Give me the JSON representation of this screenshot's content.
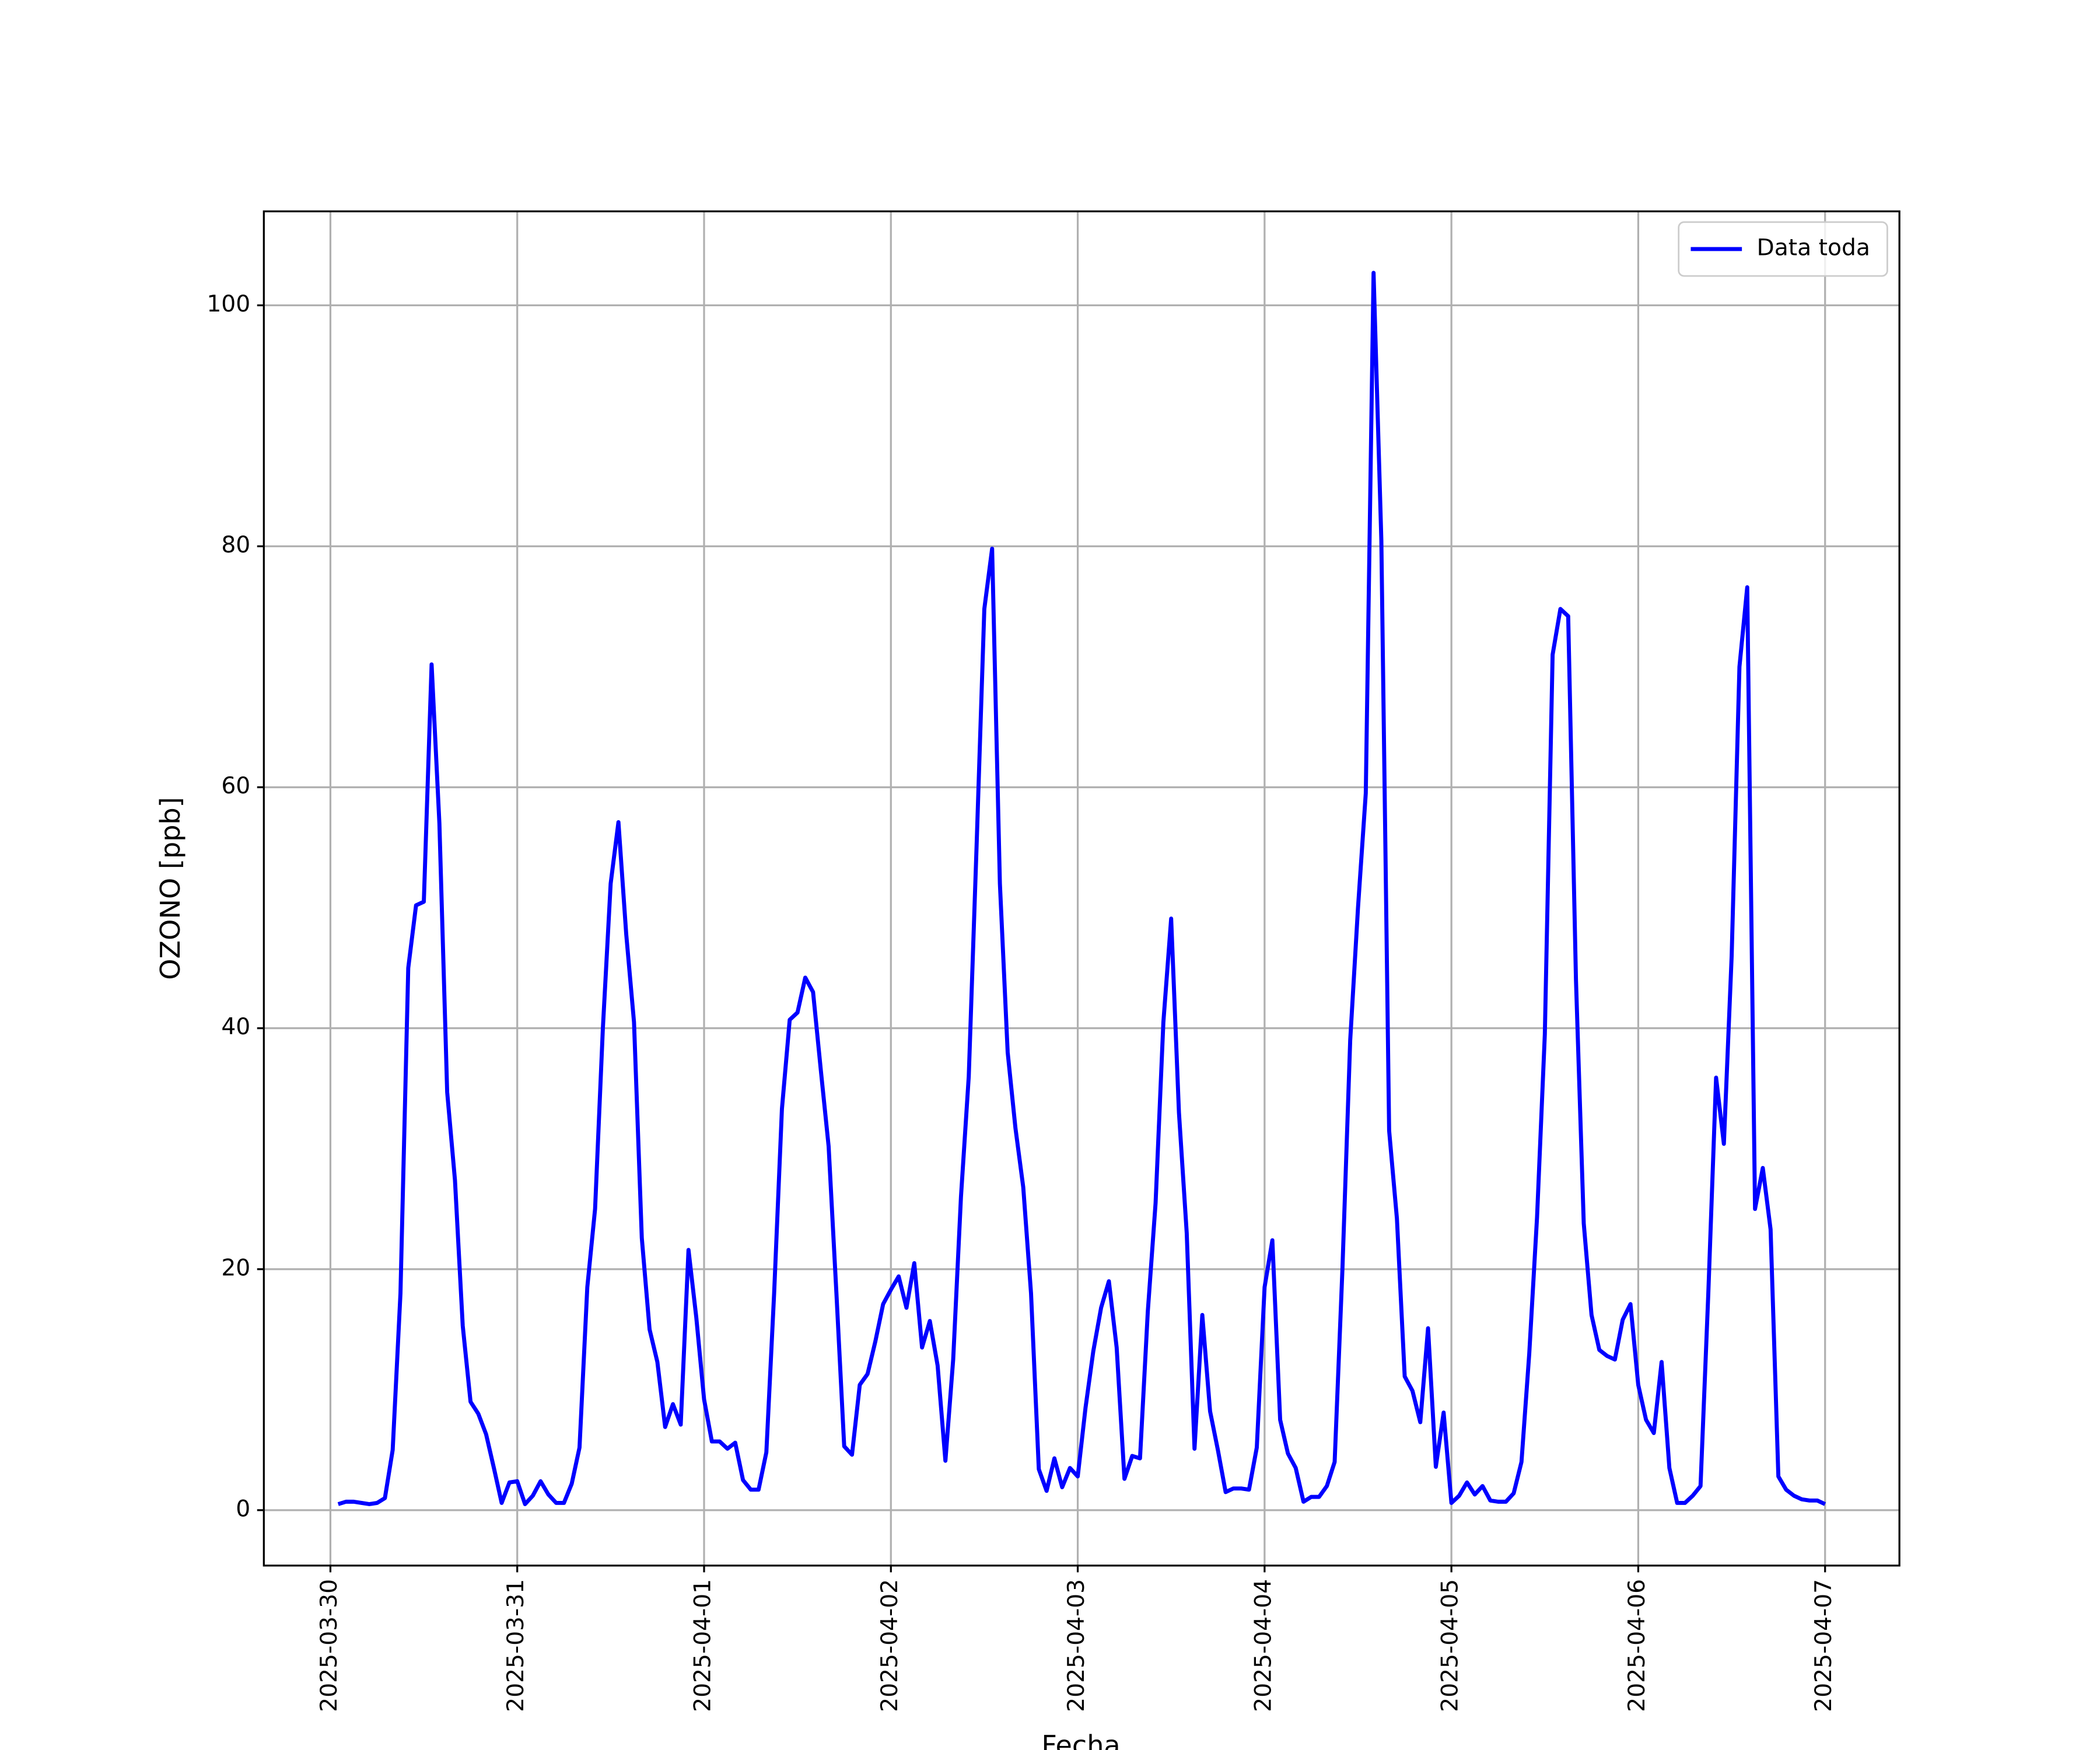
{
  "chart_data": {
    "type": "line",
    "xlabel": "Fecha",
    "ylabel": "OZONO [ppb]",
    "x": [
      "2025-03-30T01:00",
      "2025-03-30T02:00",
      "2025-03-30T03:00",
      "2025-03-30T04:00",
      "2025-03-30T05:00",
      "2025-03-30T06:00",
      "2025-03-30T07:00",
      "2025-03-30T08:00",
      "2025-03-30T09:00",
      "2025-03-30T10:00",
      "2025-03-30T11:00",
      "2025-03-30T12:00",
      "2025-03-30T13:00",
      "2025-03-30T14:00",
      "2025-03-30T15:00",
      "2025-03-30T16:00",
      "2025-03-30T17:00",
      "2025-03-30T18:00",
      "2025-03-30T19:00",
      "2025-03-30T20:00",
      "2025-03-30T21:00",
      "2025-03-30T22:00",
      "2025-03-30T23:00",
      "2025-03-31T00:00",
      "2025-03-31T01:00",
      "2025-03-31T02:00",
      "2025-03-31T03:00",
      "2025-03-31T04:00",
      "2025-03-31T05:00",
      "2025-03-31T06:00",
      "2025-03-31T07:00",
      "2025-03-31T08:00",
      "2025-03-31T09:00",
      "2025-03-31T10:00",
      "2025-03-31T11:00",
      "2025-03-31T12:00",
      "2025-03-31T13:00",
      "2025-03-31T14:00",
      "2025-03-31T15:00",
      "2025-03-31T16:00",
      "2025-03-31T17:00",
      "2025-03-31T18:00",
      "2025-03-31T19:00",
      "2025-03-31T20:00",
      "2025-03-31T21:00",
      "2025-03-31T22:00",
      "2025-03-31T23:00",
      "2025-04-01T00:00",
      "2025-04-01T01:00",
      "2025-04-01T02:00",
      "2025-04-01T03:00",
      "2025-04-01T04:00",
      "2025-04-01T05:00",
      "2025-04-01T06:00",
      "2025-04-01T07:00",
      "2025-04-01T08:00",
      "2025-04-01T09:00",
      "2025-04-01T10:00",
      "2025-04-01T11:00",
      "2025-04-01T12:00",
      "2025-04-01T13:00",
      "2025-04-01T14:00",
      "2025-04-01T15:00",
      "2025-04-01T16:00",
      "2025-04-01T17:00",
      "2025-04-01T18:00",
      "2025-04-01T19:00",
      "2025-04-01T20:00",
      "2025-04-01T21:00",
      "2025-04-01T22:00",
      "2025-04-01T23:00",
      "2025-04-02T00:00",
      "2025-04-02T01:00",
      "2025-04-02T02:00",
      "2025-04-02T03:00",
      "2025-04-02T04:00",
      "2025-04-02T05:00",
      "2025-04-02T06:00",
      "2025-04-02T07:00",
      "2025-04-02T08:00",
      "2025-04-02T09:00",
      "2025-04-02T10:00",
      "2025-04-02T11:00",
      "2025-04-02T12:00",
      "2025-04-02T13:00",
      "2025-04-02T14:00",
      "2025-04-02T15:00",
      "2025-04-02T16:00",
      "2025-04-02T17:00",
      "2025-04-02T18:00",
      "2025-04-02T19:00",
      "2025-04-02T20:00",
      "2025-04-02T21:00",
      "2025-04-02T22:00",
      "2025-04-02T23:00",
      "2025-04-03T00:00",
      "2025-04-03T01:00",
      "2025-04-03T02:00",
      "2025-04-03T03:00",
      "2025-04-03T04:00",
      "2025-04-03T05:00",
      "2025-04-03T06:00",
      "2025-04-03T07:00",
      "2025-04-03T08:00",
      "2025-04-03T09:00",
      "2025-04-03T10:00",
      "2025-04-03T11:00",
      "2025-04-03T12:00",
      "2025-04-03T13:00",
      "2025-04-03T14:00",
      "2025-04-03T15:00",
      "2025-04-03T16:00",
      "2025-04-03T17:00",
      "2025-04-03T18:00",
      "2025-04-03T19:00",
      "2025-04-03T20:00",
      "2025-04-03T21:00",
      "2025-04-03T22:00",
      "2025-04-03T23:00",
      "2025-04-04T00:00",
      "2025-04-04T01:00",
      "2025-04-04T02:00",
      "2025-04-04T03:00",
      "2025-04-04T04:00",
      "2025-04-04T05:00",
      "2025-04-04T06:00",
      "2025-04-04T07:00",
      "2025-04-04T08:00",
      "2025-04-04T09:00",
      "2025-04-04T10:00",
      "2025-04-04T11:00",
      "2025-04-04T12:00",
      "2025-04-04T13:00",
      "2025-04-04T14:00",
      "2025-04-04T15:00",
      "2025-04-04T16:00",
      "2025-04-04T17:00",
      "2025-04-04T18:00",
      "2025-04-04T19:00",
      "2025-04-04T20:00",
      "2025-04-04T21:00",
      "2025-04-04T22:00",
      "2025-04-04T23:00",
      "2025-04-05T00:00",
      "2025-04-05T01:00",
      "2025-04-05T02:00",
      "2025-04-05T03:00",
      "2025-04-05T04:00",
      "2025-04-05T05:00",
      "2025-04-05T06:00",
      "2025-04-05T07:00",
      "2025-04-05T08:00",
      "2025-04-05T09:00",
      "2025-04-05T10:00",
      "2025-04-05T11:00",
      "2025-04-05T12:00",
      "2025-04-05T13:00",
      "2025-04-05T14:00",
      "2025-04-05T15:00",
      "2025-04-05T16:00",
      "2025-04-05T17:00",
      "2025-04-05T18:00",
      "2025-04-05T19:00",
      "2025-04-05T20:00",
      "2025-04-05T21:00",
      "2025-04-05T22:00",
      "2025-04-05T23:00",
      "2025-04-06T00:00",
      "2025-04-06T01:00",
      "2025-04-06T02:00",
      "2025-04-06T03:00",
      "2025-04-06T04:00",
      "2025-04-06T05:00",
      "2025-04-06T06:00",
      "2025-04-06T07:00",
      "2025-04-06T08:00",
      "2025-04-06T09:00",
      "2025-04-06T10:00",
      "2025-04-06T11:00",
      "2025-04-06T12:00",
      "2025-04-06T13:00",
      "2025-04-06T14:00",
      "2025-04-06T15:00",
      "2025-04-06T16:00",
      "2025-04-06T17:00",
      "2025-04-06T18:00",
      "2025-04-06T19:00",
      "2025-04-06T20:00",
      "2025-04-06T21:00",
      "2025-04-06T22:00",
      "2025-04-06T23:00",
      "2025-04-07T00:00"
    ],
    "series": [
      {
        "name": "Data toda",
        "color": "#0000ff",
        "values": [
          0.5,
          0.7,
          0.7,
          0.6,
          0.5,
          0.6,
          1.0,
          5,
          18,
          45,
          50.2,
          50.5,
          70.2,
          57,
          34.7,
          27.4,
          15.3,
          9,
          8,
          6.3,
          3.5,
          0.6,
          2.3,
          2.4,
          0.5,
          1.2,
          2.4,
          1.3,
          0.6,
          0.6,
          2.2,
          5.2,
          18.5,
          25,
          40,
          52,
          57.1,
          47.8,
          40.5,
          22.6,
          15,
          12.3,
          6.9,
          8.8,
          7.1,
          21.6,
          16,
          9.2,
          5.7,
          5.7,
          5.1,
          5.6,
          2.5,
          1.7,
          1.7,
          4.8,
          18,
          33.3,
          40.7,
          41.3,
          44.2,
          43,
          36.5,
          30.2,
          18,
          5.3,
          4.6,
          10.4,
          11.3,
          14,
          17.1,
          18.3,
          19.4,
          16.8,
          20.5,
          13.5,
          15.7,
          12,
          4.1,
          12.5,
          26,
          36,
          55,
          74.8,
          79.8,
          52,
          38,
          31.7,
          26.8,
          18,
          3.4,
          1.6,
          4.3,
          1.9,
          3.5,
          2.8,
          8.5,
          13.2,
          16.8,
          19,
          13.5,
          2.6,
          4.5,
          4.3,
          16.5,
          25.5,
          40.5,
          49.1,
          33,
          23,
          5.1,
          16.2,
          8.2,
          5,
          1.5,
          1.8,
          1.8,
          1.7,
          5.2,
          18.5,
          22.4,
          7.5,
          4.7,
          3.5,
          0.7,
          1.1,
          1.1,
          2,
          4,
          20,
          39,
          50,
          59.5,
          102.7,
          80.5,
          31.5,
          24.2,
          11.1,
          9.9,
          7.3,
          15.1,
          3.6,
          8.1,
          0.6,
          1.2,
          2.3,
          1.3,
          2,
          0.8,
          0.7,
          0.7,
          1.4,
          4,
          13,
          24.3,
          39.5,
          71,
          74.8,
          74.2,
          44,
          23.8,
          16.2,
          13.3,
          12.8,
          12.5,
          15.8,
          17.1,
          10.4,
          7.5,
          6.4,
          12.3,
          3.5,
          0.6,
          0.6,
          1.2,
          2,
          18,
          35.9,
          30.4,
          46,
          70,
          76.6,
          25,
          28.4,
          23.3,
          2.8,
          1.7,
          1.2,
          0.9,
          0.8,
          0.8,
          0.5
        ]
      }
    ],
    "xlim": [
      "2025-03-29T15:27",
      "2025-04-07T09:33"
    ],
    "xticks": [
      "2025-03-30",
      "2025-03-31",
      "2025-04-01",
      "2025-04-02",
      "2025-04-03",
      "2025-04-04",
      "2025-04-05",
      "2025-04-06",
      "2025-04-07"
    ],
    "ylim": [
      -4.6,
      107.8
    ],
    "yticks": [
      0,
      20,
      40,
      60,
      80,
      100
    ],
    "grid": true,
    "legend": "upper right"
  }
}
